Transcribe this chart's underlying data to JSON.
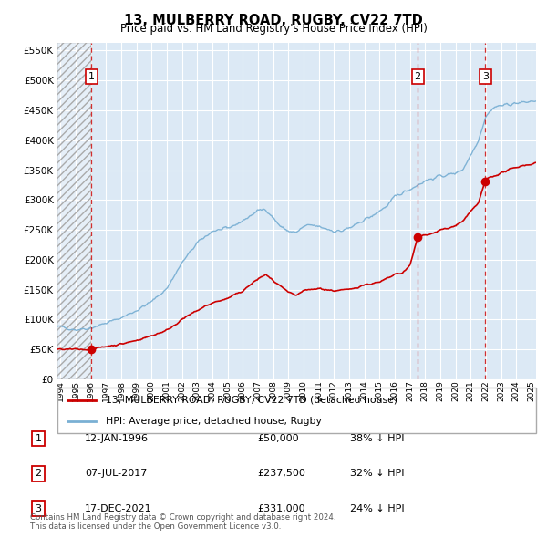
{
  "title": "13, MULBERRY ROAD, RUGBY, CV22 7TD",
  "subtitle": "Price paid vs. HM Land Registry's House Price Index (HPI)",
  "legend_label_red": "13, MULBERRY ROAD, RUGBY, CV22 7TD (detached house)",
  "legend_label_blue": "HPI: Average price, detached house, Rugby",
  "footer": "Contains HM Land Registry data © Crown copyright and database right 2024.\nThis data is licensed under the Open Government Licence v3.0.",
  "sales": [
    {
      "num": 1,
      "date": "12-JAN-1996",
      "price": 50000,
      "year": 1996.04,
      "pct": "38% ↓ HPI"
    },
    {
      "num": 2,
      "date": "07-JUL-2017",
      "price": 237500,
      "year": 2017.51,
      "pct": "32% ↓ HPI"
    },
    {
      "num": 3,
      "date": "17-DEC-2021",
      "price": 331000,
      "year": 2021.96,
      "pct": "24% ↓ HPI"
    }
  ],
  "ylim": [
    0,
    562500
  ],
  "xlim_start": 1993.8,
  "xlim_end": 2025.3,
  "background_color": "#dce9f5",
  "red_line_color": "#cc0000",
  "blue_line_color": "#7ab0d4",
  "red_dot_color": "#cc0000",
  "grid_color": "#ffffff",
  "hpi_breakpoints": [
    [
      1993.8,
      88000
    ],
    [
      1994,
      88000
    ],
    [
      1995,
      83000
    ],
    [
      1996,
      86000
    ],
    [
      1997,
      94000
    ],
    [
      1998,
      103000
    ],
    [
      1999,
      115000
    ],
    [
      2000,
      130000
    ],
    [
      2001,
      152000
    ],
    [
      2002,
      195000
    ],
    [
      2003,
      228000
    ],
    [
      2004,
      248000
    ],
    [
      2005,
      252000
    ],
    [
      2006,
      265000
    ],
    [
      2007,
      282000
    ],
    [
      2007.5,
      285000
    ],
    [
      2008,
      270000
    ],
    [
      2008.5,
      255000
    ],
    [
      2009,
      248000
    ],
    [
      2009.5,
      245000
    ],
    [
      2010,
      255000
    ],
    [
      2010.5,
      258000
    ],
    [
      2011,
      255000
    ],
    [
      2011.5,
      252000
    ],
    [
      2012,
      248000
    ],
    [
      2012.5,
      248000
    ],
    [
      2013,
      253000
    ],
    [
      2013.5,
      258000
    ],
    [
      2014,
      268000
    ],
    [
      2014.5,
      272000
    ],
    [
      2015,
      282000
    ],
    [
      2015.5,
      290000
    ],
    [
      2016,
      305000
    ],
    [
      2016.5,
      312000
    ],
    [
      2017,
      318000
    ],
    [
      2017.5,
      325000
    ],
    [
      2018,
      332000
    ],
    [
      2018.5,
      336000
    ],
    [
      2019,
      340000
    ],
    [
      2019.5,
      342000
    ],
    [
      2020,
      345000
    ],
    [
      2020.5,
      352000
    ],
    [
      2021,
      375000
    ],
    [
      2021.5,
      400000
    ],
    [
      2022,
      440000
    ],
    [
      2022.5,
      455000
    ],
    [
      2023,
      458000
    ],
    [
      2023.5,
      460000
    ],
    [
      2024,
      462000
    ],
    [
      2024.5,
      463000
    ],
    [
      2025,
      465000
    ],
    [
      2025.3,
      466000
    ]
  ],
  "red_breakpoints": [
    [
      1993.8,
      50000
    ],
    [
      1996.04,
      50000
    ],
    [
      1997,
      55000
    ],
    [
      1998,
      59000
    ],
    [
      1999,
      65000
    ],
    [
      2000,
      73000
    ],
    [
      2001,
      82000
    ],
    [
      2002,
      100000
    ],
    [
      2003,
      115000
    ],
    [
      2004,
      128000
    ],
    [
      2005,
      135000
    ],
    [
      2006,
      148000
    ],
    [
      2007,
      168000
    ],
    [
      2007.5,
      175000
    ],
    [
      2008,
      165000
    ],
    [
      2009,
      145000
    ],
    [
      2009.5,
      140000
    ],
    [
      2010,
      148000
    ],
    [
      2011,
      152000
    ],
    [
      2012,
      148000
    ],
    [
      2013,
      150000
    ],
    [
      2014,
      158000
    ],
    [
      2015,
      162000
    ],
    [
      2016,
      175000
    ],
    [
      2016.5,
      178000
    ],
    [
      2017,
      190000
    ],
    [
      2017.51,
      237500
    ],
    [
      2018,
      242000
    ],
    [
      2018.5,
      244000
    ],
    [
      2019,
      250000
    ],
    [
      2019.5,
      252000
    ],
    [
      2020,
      257000
    ],
    [
      2020.5,
      265000
    ],
    [
      2021,
      280000
    ],
    [
      2021.5,
      295000
    ],
    [
      2021.96,
      331000
    ],
    [
      2022,
      335000
    ],
    [
      2022.5,
      340000
    ],
    [
      2023,
      345000
    ],
    [
      2023.5,
      350000
    ],
    [
      2024,
      355000
    ],
    [
      2024.5,
      358000
    ],
    [
      2025,
      360000
    ],
    [
      2025.3,
      362000
    ]
  ]
}
